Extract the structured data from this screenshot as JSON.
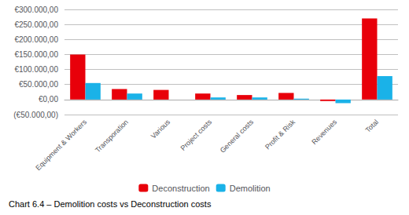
{
  "chart_data": {
    "type": "bar",
    "title": "Chart 6.4 – Demolition costs vs Deconstruction costs",
    "categories": [
      "Equipment & Workers",
      "Transporation",
      "Various",
      "Project costs",
      "General costs",
      "Profit & Risk",
      "Revenues",
      "Total"
    ],
    "series": [
      {
        "name": "Deconstruction",
        "color": "#e8000a",
        "values": [
          150000,
          35000,
          32000,
          20000,
          15000,
          22000,
          -5000,
          270000
        ]
      },
      {
        "name": "Demolition",
        "color": "#1ab2e8",
        "values": [
          55000,
          20000,
          0,
          7000,
          7000,
          3000,
          -12000,
          78000
        ]
      }
    ],
    "ylim": [
      -50000,
      300000
    ],
    "yticks": [
      {
        "value": -50000,
        "label": "(€50.000,00)"
      },
      {
        "value": 0,
        "label": "€0,00"
      },
      {
        "value": 50000,
        "label": "€50.000,00"
      },
      {
        "value": 100000,
        "label": "€100.000,00"
      },
      {
        "value": 150000,
        "label": "€150.000,00"
      },
      {
        "value": 200000,
        "label": "€200.000,00"
      },
      {
        "value": 250000,
        "label": "€250.000,00"
      },
      {
        "value": 300000,
        "label": "€300.000,00"
      }
    ],
    "grid": true,
    "legend": "bottom"
  }
}
